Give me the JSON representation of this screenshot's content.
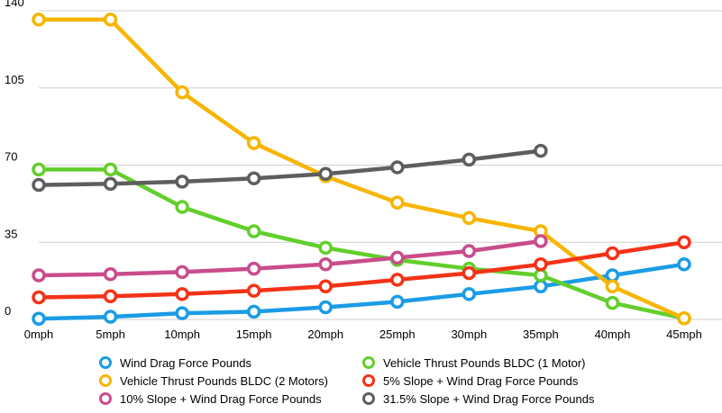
{
  "chart_data": {
    "type": "line",
    "x": [
      "0mph",
      "5mph",
      "10mph",
      "15mph",
      "20mph",
      "25mph",
      "30mph",
      "35mph",
      "40mph",
      "45mph"
    ],
    "ylim": [
      0,
      140
    ],
    "yticks": [
      0,
      35,
      70,
      105,
      140
    ],
    "grid": true,
    "legend_position": "bottom",
    "series": [
      {
        "name": "Wind Drag Force Pounds",
        "color": "#1a9ce6",
        "values": [
          0.3,
          1.2,
          2.8,
          3.5,
          5.5,
          8,
          11.5,
          15,
          20,
          25
        ]
      },
      {
        "name": "Vehicle Thrust Pounds BLDC (1 Motor)",
        "color": "#62cf2c",
        "values": [
          68,
          68,
          51,
          40,
          32.5,
          27,
          23,
          20,
          7.5,
          0.5
        ]
      },
      {
        "name": "Vehicle Thrust Pounds BLDC (2 Motors)",
        "color": "#f7b500",
        "values": [
          136,
          136,
          103,
          80,
          65,
          53,
          46,
          40,
          15,
          0.5
        ]
      },
      {
        "name": "5% Slope + Wind Drag Force Pounds",
        "color": "#f43217",
        "values": [
          10,
          10.5,
          11.5,
          13,
          15,
          18,
          21,
          25,
          30,
          35
        ]
      },
      {
        "name": "10% Slope + Wind Drag Force Pounds",
        "color": "#c94c8c",
        "values": [
          20,
          20.5,
          21.5,
          23,
          25,
          28,
          31,
          35.5,
          null,
          null
        ]
      },
      {
        "name": "31.5% Slope + Wind Drag Force Pounds",
        "color": "#5e5e5e",
        "values": [
          61,
          61.5,
          62.5,
          64,
          66,
          69,
          72.5,
          76.5,
          null,
          null
        ]
      }
    ]
  }
}
